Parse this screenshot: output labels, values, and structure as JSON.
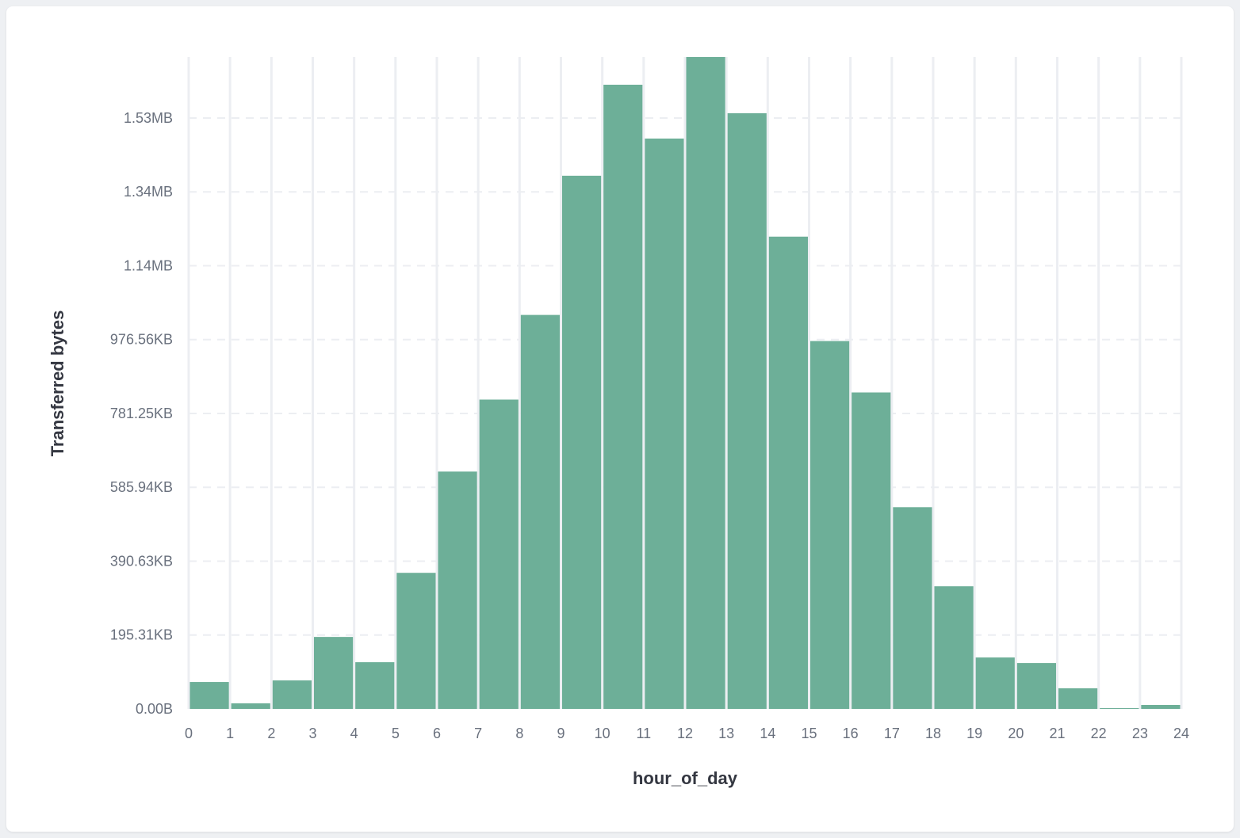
{
  "chart_data": {
    "type": "bar",
    "xlabel": "hour_of_day",
    "ylabel": "Transferred bytes",
    "x_ticks": [
      "0",
      "1",
      "2",
      "3",
      "4",
      "5",
      "6",
      "7",
      "8",
      "9",
      "10",
      "11",
      "12",
      "13",
      "14",
      "15",
      "16",
      "17",
      "18",
      "19",
      "20",
      "21",
      "22",
      "23",
      "24"
    ],
    "y_ticks": [
      0,
      200000,
      400000,
      600000,
      800000,
      1000000,
      1200000,
      1400000,
      1600000
    ],
    "y_tick_labels": [
      "0.00B",
      "195.31KB",
      "390.63KB",
      "585.94KB",
      "781.25KB",
      "976.56KB",
      "1.14MB",
      "1.34MB",
      "1.53MB"
    ],
    "xlim": [
      0,
      24
    ],
    "ylim": [
      0,
      1765000
    ],
    "bins": [
      0,
      1,
      2,
      3,
      4,
      5,
      6,
      7,
      8,
      9,
      10,
      11,
      12,
      13,
      14,
      15,
      16,
      17,
      18,
      19,
      20,
      21,
      22,
      23
    ],
    "values": [
      72800,
      15000,
      77100,
      194900,
      126400,
      368400,
      642600,
      837500,
      1066700,
      1443600,
      1690000,
      1544300,
      1765000,
      1612900,
      1278700,
      996000,
      856800,
      546200,
      332000,
      139200,
      124200,
      55700,
      2100,
      10700
    ],
    "bar_color": "#6daf98",
    "grid": {
      "vertical": true,
      "horizontal": "dashed"
    }
  }
}
